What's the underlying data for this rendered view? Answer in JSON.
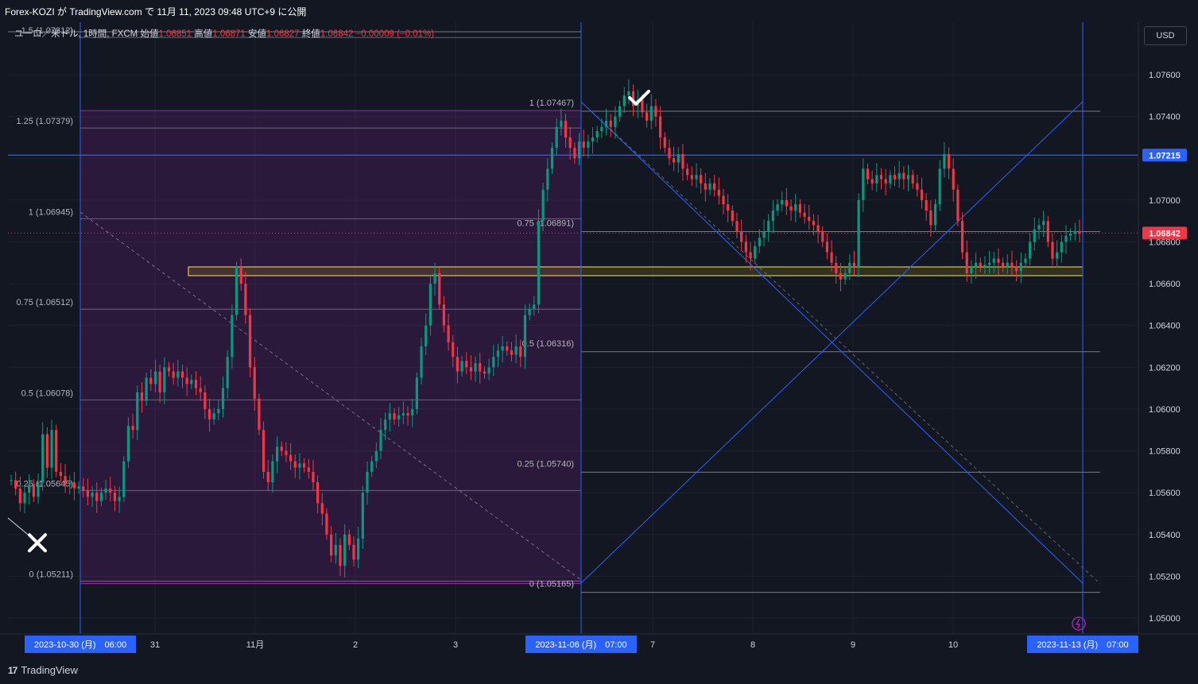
{
  "header": {
    "publish_text": "Forex-KOZI が TradingView.com で 11月 11, 2023 09:48 UTC+9 に公開"
  },
  "legend": {
    "symbol": "ユーロ／米ドル, 1時間, FXCM",
    "open_label": "始値",
    "open": "1.06851",
    "high_label": "高値",
    "high": "1.06871",
    "low_label": "安値",
    "low": "1.06827",
    "close_label": "終値",
    "close": "1.06842",
    "change": "−0.00009 (−0.01%)"
  },
  "currency_button": "USD",
  "brand": {
    "name": "TradingView",
    "mark": "17"
  },
  "colors": {
    "background": "#131722",
    "up_candle": "#089981",
    "down_candle": "#f23645",
    "fib_zone": "#9c27b0",
    "trendline": "#2962ff",
    "support_box": "#ffeb3b"
  },
  "chart_data": {
    "type": "candlestick",
    "symbol": "EURUSD",
    "timeframe": "1時間",
    "y_axis": {
      "range": [
        1.0496,
        1.0776
      ],
      "ticks": [
        "1.07600",
        "1.07400",
        "1.07200",
        "1.07000",
        "1.06800",
        "1.06600",
        "1.06400",
        "1.06200",
        "1.06000",
        "1.05800",
        "1.05600",
        "1.05400",
        "1.05200",
        "1.05000"
      ],
      "badges": [
        {
          "value": 1.07215,
          "label": "1.07215",
          "color": "#2962ff"
        },
        {
          "value": 1.06842,
          "label": "1.06842",
          "color": "#f23645"
        }
      ]
    },
    "x_axis": {
      "ticks": [
        {
          "label": "31",
          "pos": 195
        },
        {
          "label": "11月",
          "pos": 321
        },
        {
          "label": "2",
          "pos": 447
        },
        {
          "label": "3",
          "pos": 573
        },
        {
          "label": "7",
          "pos": 821
        },
        {
          "label": "8",
          "pos": 947
        },
        {
          "label": "9",
          "pos": 1073
        },
        {
          "label": "10",
          "pos": 1199
        }
      ],
      "highlights": [
        {
          "label": "2023-10-30 (月)　06:00"
        },
        {
          "label": "2023-11-06 (月)　07:00"
        },
        {
          "label": "2023-11-13 (月)　07:00"
        }
      ]
    },
    "fib_1": {
      "low": 1.05211,
      "high": 1.07379,
      "levels": [
        {
          "label": "1.5 (1.07812)",
          "value": 1.07812
        },
        {
          "label": "1.25 (1.07379)",
          "value": 1.07379
        },
        {
          "label": "1 (1.06945)",
          "value": 1.06945
        },
        {
          "label": "0.75 (1.06512)",
          "value": 1.06512
        },
        {
          "label": "0.5 (1.06078)",
          "value": 1.06078
        },
        {
          "label": "0.25 (1.05645)",
          "value": 1.05645
        },
        {
          "label": "0 (1.05211)",
          "value": 1.05211
        }
      ]
    },
    "fib_2": {
      "levels": [
        {
          "label": "1 (1.07467)",
          "value": 1.07467
        },
        {
          "label": "0.75 (1.06891)",
          "value": 1.06891
        },
        {
          "label": "0.5 (1.06316)",
          "value": 1.06316
        },
        {
          "label": "0.25 (1.05740)",
          "value": 1.0574
        },
        {
          "label": "0 (1.05165)",
          "value": 1.05165
        }
      ]
    },
    "support_box": {
      "top": 1.0672,
      "bottom": 1.0665
    },
    "horizontal_line": 1.07215,
    "last_price": 1.06842,
    "markers": [
      {
        "type": "cross",
        "value": 1.0536
      },
      {
        "type": "check",
        "value": 1.0749
      }
    ],
    "series": [
      {
        "name": "EURUSD 1H close (approx.)",
        "closes": [
          1.0566,
          1.0562,
          1.0555,
          1.056,
          1.0564,
          1.0558,
          1.0565,
          1.0588,
          1.0572,
          1.059,
          1.057,
          1.0568,
          1.0564,
          1.0565,
          1.0562,
          1.0563,
          1.0561,
          1.0558,
          1.056,
          1.0556,
          1.056,
          1.0562,
          1.056,
          1.0556,
          1.0558,
          1.0575,
          1.0592,
          1.059,
          1.0608,
          1.0604,
          1.0615,
          1.0612,
          1.0618,
          1.0608,
          1.062,
          1.0618,
          1.0615,
          1.0618,
          1.0615,
          1.0612,
          1.0614,
          1.061,
          1.0608,
          1.06,
          1.0595,
          1.0598,
          1.06,
          1.061,
          1.0625,
          1.0645,
          1.0668,
          1.066,
          1.0645,
          1.062,
          1.0605,
          1.059,
          1.057,
          1.0565,
          1.0575,
          1.0582,
          1.058,
          1.0578,
          1.0575,
          1.0572,
          1.0574,
          1.0572,
          1.057,
          1.0565,
          1.0555,
          1.055,
          1.054,
          1.053,
          1.0535,
          1.0525,
          1.054,
          1.0535,
          1.0528,
          1.0538,
          1.056,
          1.057,
          1.0575,
          1.058,
          1.059,
          1.0595,
          1.0598,
          1.0595,
          1.0597,
          1.0598,
          1.0597,
          1.06,
          1.0615,
          1.063,
          1.064,
          1.066,
          1.0665,
          1.065,
          1.064,
          1.0632,
          1.0625,
          1.0618,
          1.0623,
          1.062,
          1.0618,
          1.0622,
          1.0618,
          1.0617,
          1.062,
          1.0625,
          1.0628,
          1.063,
          1.0628,
          1.0626,
          1.063,
          1.0625,
          1.0645,
          1.0648,
          1.065,
          1.069,
          1.0705,
          1.0715,
          1.0725,
          1.0735,
          1.0738,
          1.073,
          1.0725,
          1.072,
          1.0728,
          1.0725,
          1.0728,
          1.073,
          1.0733,
          1.0735,
          1.0738,
          1.0735,
          1.074,
          1.0745,
          1.075,
          1.0752,
          1.0745,
          1.0748,
          1.0742,
          1.0738,
          1.0745,
          1.074,
          1.073,
          1.0725,
          1.072,
          1.0718,
          1.0722,
          1.0715,
          1.0712,
          1.071,
          1.0712,
          1.0708,
          1.0705,
          1.0708,
          1.0705,
          1.0702,
          1.0698,
          1.0695,
          1.069,
          1.0685,
          1.068,
          1.0675,
          1.0672,
          1.0678,
          1.0682,
          1.0685,
          1.069,
          1.0695,
          1.0698,
          1.07,
          1.0697,
          1.0695,
          1.0698,
          1.0694,
          1.0692,
          1.069,
          1.0688,
          1.0685,
          1.068,
          1.0675,
          1.067,
          1.0665,
          1.0662,
          1.0665,
          1.067,
          1.0668,
          1.07,
          1.0715,
          1.071,
          1.0708,
          1.0712,
          1.071,
          1.0708,
          1.0712,
          1.071,
          1.0713,
          1.071,
          1.0712,
          1.0708,
          1.0705,
          1.07,
          1.0695,
          1.0688,
          1.0698,
          1.0715,
          1.0722,
          1.0715,
          1.0705,
          1.069,
          1.0675,
          1.0665,
          1.0668,
          1.067,
          1.0668,
          1.0669,
          1.067,
          1.0672,
          1.067,
          1.0668,
          1.067,
          1.0668,
          1.0666,
          1.067,
          1.0672,
          1.068,
          1.0686,
          1.0688,
          1.069,
          1.068,
          1.0672,
          1.0675,
          1.068,
          1.0683,
          1.0684,
          1.0685,
          1.0684
        ]
      }
    ]
  }
}
